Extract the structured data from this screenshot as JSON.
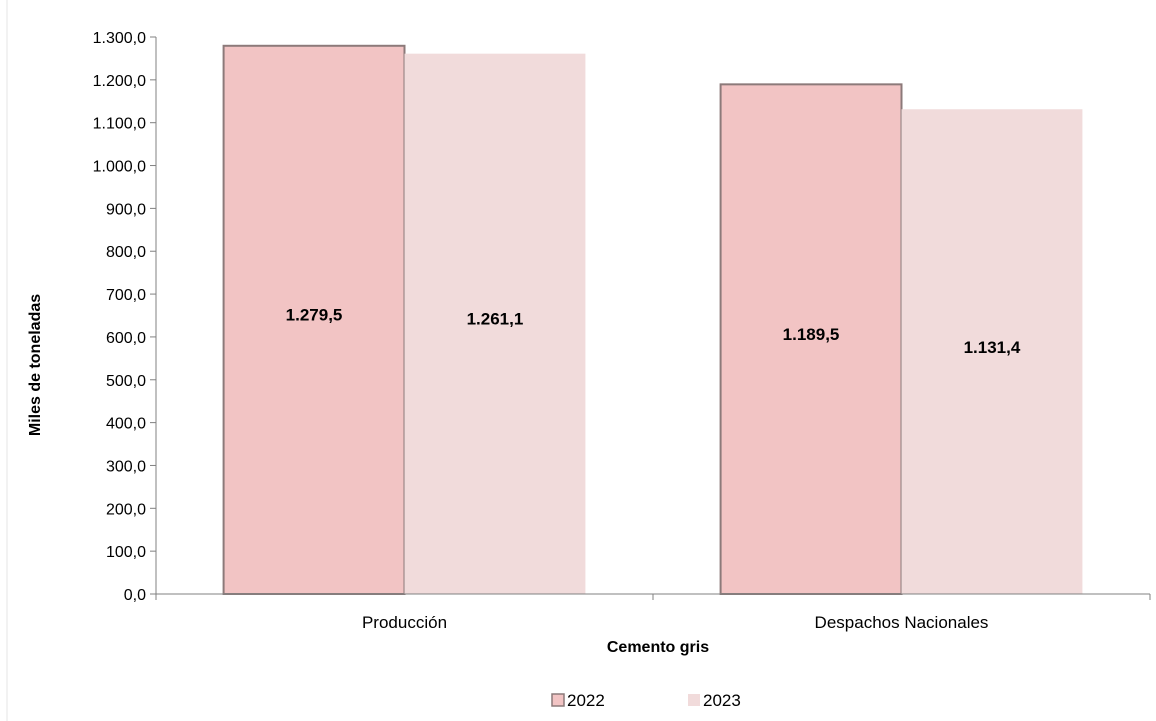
{
  "chart_data": {
    "type": "bar",
    "categories": [
      "Producción",
      "Despachos Nacionales"
    ],
    "series": [
      {
        "name": "2022",
        "values": [
          1279.5,
          1189.5
        ],
        "labels": [
          "1.279,5",
          "1.189,5"
        ],
        "color": "#f2c4c4"
      },
      {
        "name": "2023",
        "values": [
          1261.1,
          1131.4
        ],
        "labels": [
          "1.261,1",
          "1.131,4"
        ],
        "color": "#f1dbdb"
      }
    ],
    "xlabel": "Cemento gris",
    "ylabel": "Miles de toneladas",
    "ylim": [
      0,
      1300
    ],
    "yticks": [
      0,
      100,
      200,
      300,
      400,
      500,
      600,
      700,
      800,
      900,
      1000,
      1100,
      1200,
      1300
    ],
    "ytick_labels": [
      "0,0",
      "100,0",
      "200,0",
      "300,0",
      "400,0",
      "500,0",
      "600,0",
      "700,0",
      "800,0",
      "900,0",
      "1.000,0",
      "1.100,0",
      "1.200,0",
      "1.300,0"
    ],
    "grid": false,
    "legend": "bottom",
    "axis_color": "#808080",
    "bar_edge_color_2022": "#8c7a7a"
  }
}
